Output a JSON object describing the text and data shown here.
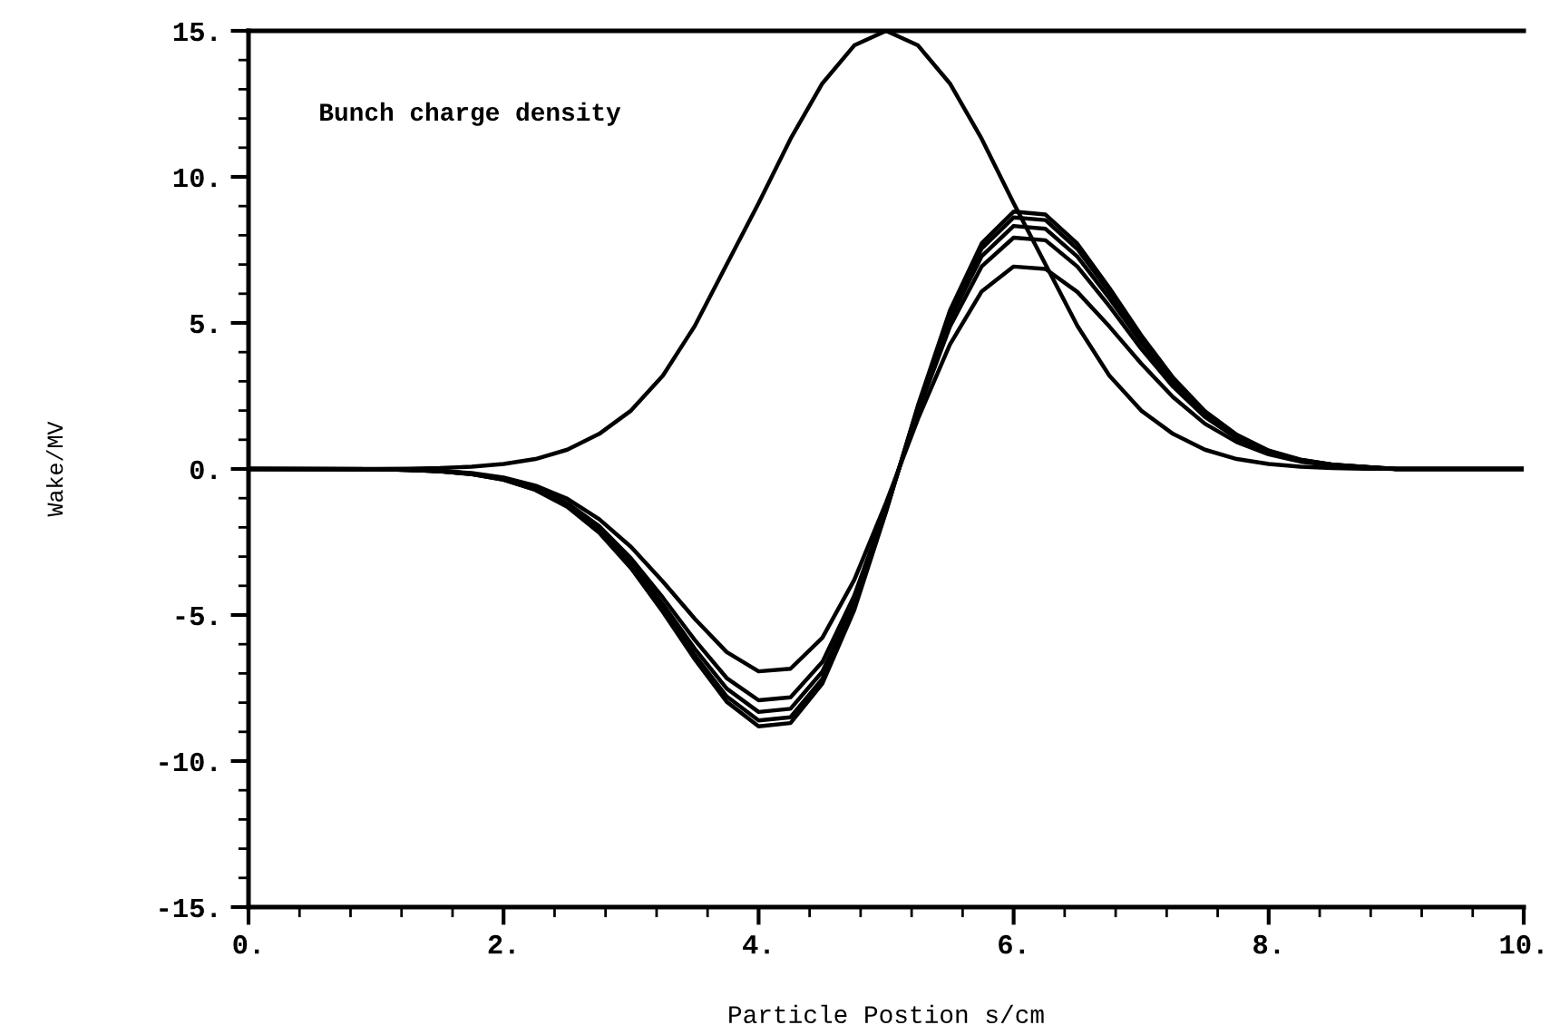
{
  "chart_data": {
    "type": "line",
    "xlabel": "Particle Postion s/cm",
    "ylabel": "Wake/MV",
    "annotations": [
      "Bunch charge density"
    ],
    "xlim": [
      0,
      10
    ],
    "ylim": [
      -15,
      15
    ],
    "xticks": [
      {
        "value": 0,
        "label": "0."
      },
      {
        "value": 2,
        "label": "2."
      },
      {
        "value": 4,
        "label": "4."
      },
      {
        "value": 6,
        "label": "6."
      },
      {
        "value": 8,
        "label": "8."
      },
      {
        "value": 10,
        "label": "10."
      }
    ],
    "yticks": [
      {
        "value": -15,
        "label": "-15."
      },
      {
        "value": -10,
        "label": "-10."
      },
      {
        "value": -5,
        "label": "-5."
      },
      {
        "value": 0,
        "label": "0."
      },
      {
        "value": 5,
        "label": "5."
      },
      {
        "value": 10,
        "label": "10."
      },
      {
        "value": 15,
        "label": "15."
      }
    ],
    "grid": false,
    "legend": false,
    "marker": "none",
    "line_style": "solid",
    "x": [
      0,
      1,
      1.25,
      1.5,
      1.75,
      2,
      2.25,
      2.5,
      2.75,
      3,
      3.25,
      3.5,
      3.75,
      4,
      4.25,
      4.5,
      4.75,
      5,
      5.25,
      5.5,
      5.75,
      6,
      6.25,
      6.5,
      6.75,
      7,
      7.25,
      7.5,
      7.75,
      8,
      8.25,
      8.5,
      8.75,
      9,
      10
    ],
    "series": [
      {
        "color": "#000000",
        "values": [
          0,
          0,
          0.01,
          0.03,
          0.08,
          0.17,
          0.34,
          0.66,
          1.2,
          2.0,
          3.2,
          4.9,
          7.0,
          9.1,
          11.3,
          13.2,
          14.5,
          15,
          14.5,
          13.2,
          11.3,
          9.1,
          7.0,
          4.9,
          3.2,
          2.0,
          1.2,
          0.66,
          0.34,
          0.17,
          0.08,
          0.03,
          0.01,
          0,
          0
        ]
      },
      {
        "color": "#000000",
        "values": [
          0,
          -0.01,
          -0.03,
          -0.06,
          -0.14,
          -0.29,
          -0.57,
          -1.02,
          -1.72,
          -2.67,
          -3.86,
          -5.13,
          -6.27,
          -6.93,
          -6.84,
          -5.78,
          -3.8,
          -1.15,
          1.72,
          4.26,
          6.08,
          6.93,
          6.85,
          6.06,
          4.88,
          3.61,
          2.46,
          1.55,
          0.92,
          0.5,
          0.25,
          0.12,
          0.06,
          0,
          0
        ]
      },
      {
        "color": "#000000",
        "values": [
          0,
          -0.01,
          -0.03,
          -0.07,
          -0.16,
          -0.34,
          -0.65,
          -1.17,
          -1.96,
          -3.06,
          -4.41,
          -5.86,
          -7.16,
          -7.92,
          -7.82,
          -6.61,
          -4.34,
          -1.31,
          1.96,
          4.87,
          6.94,
          7.92,
          7.83,
          6.93,
          5.58,
          4.12,
          2.82,
          1.78,
          1.05,
          0.57,
          0.29,
          0.14,
          0.06,
          0,
          0
        ]
      },
      {
        "color": "#000000",
        "values": [
          0,
          -0.01,
          -0.03,
          -0.08,
          -0.17,
          -0.35,
          -0.68,
          -1.23,
          -2.06,
          -3.21,
          -4.63,
          -6.16,
          -7.52,
          -8.32,
          -8.21,
          -6.94,
          -4.56,
          -1.38,
          2.06,
          5.12,
          7.29,
          8.32,
          8.22,
          7.27,
          5.85,
          4.33,
          2.96,
          1.86,
          1.1,
          0.6,
          0.3,
          0.14,
          0.07,
          0,
          0
        ]
      },
      {
        "color": "#000000",
        "values": [
          0,
          -0.01,
          -0.03,
          -0.08,
          -0.17,
          -0.37,
          -0.7,
          -1.27,
          -2.13,
          -3.32,
          -4.79,
          -6.38,
          -7.79,
          -8.61,
          -8.5,
          -7.19,
          -4.72,
          -1.43,
          2.13,
          5.3,
          7.55,
          8.61,
          8.52,
          7.53,
          6.06,
          4.48,
          3.06,
          1.93,
          1.14,
          0.62,
          0.31,
          0.15,
          0.07,
          0,
          0
        ]
      },
      {
        "color": "#000000",
        "values": [
          0,
          -0.01,
          -0.03,
          -0.08,
          -0.18,
          -0.37,
          -0.72,
          -1.3,
          -2.18,
          -3.4,
          -4.9,
          -6.52,
          -7.97,
          -8.81,
          -8.7,
          -7.35,
          -4.83,
          -1.46,
          2.18,
          5.42,
          7.73,
          8.81,
          8.71,
          7.71,
          6.2,
          4.58,
          3.13,
          1.98,
          1.17,
          0.63,
          0.32,
          0.15,
          0.07,
          0,
          0
        ]
      }
    ]
  }
}
